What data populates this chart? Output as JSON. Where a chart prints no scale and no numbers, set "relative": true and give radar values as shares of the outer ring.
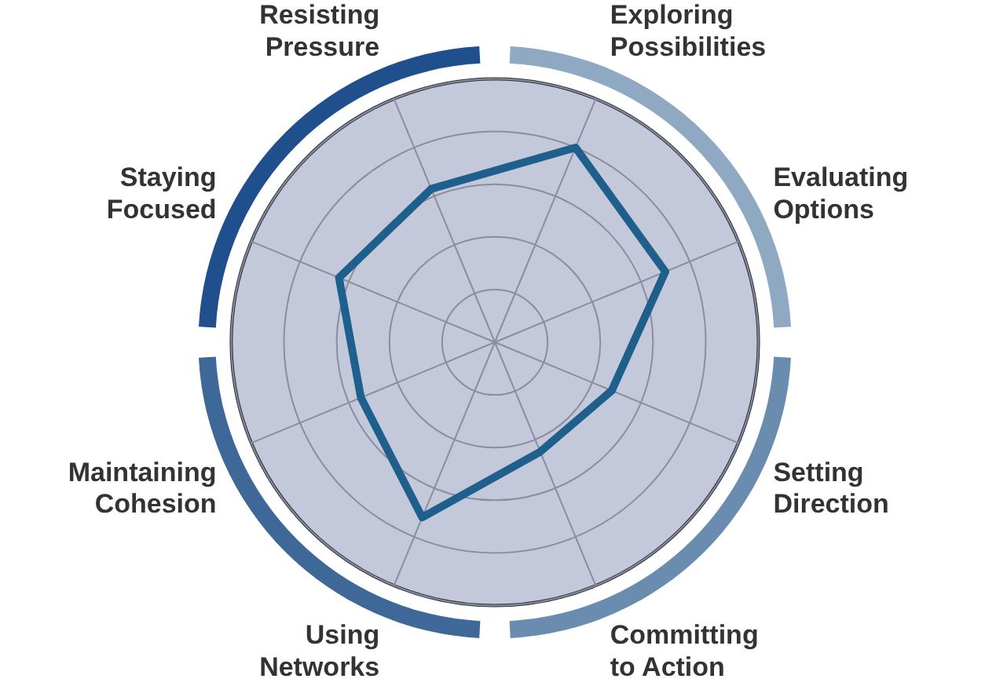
{
  "chart_data": {
    "type": "radar",
    "relative": true,
    "grid": true,
    "marker": "none",
    "categories": [
      "Exploring Possibilities",
      "Evaluating Options",
      "Setting Direction",
      "Committing to Action",
      "Using Networks",
      "Maintaining Cohesion",
      "Staying Focused",
      "Resisting Pressure"
    ],
    "series": [
      {
        "color": "#1f5f8b",
        "values": [
          0.8,
          0.7,
          0.48,
          0.45,
          0.72,
          0.55,
          0.64,
          0.63
        ]
      }
    ]
  }
}
